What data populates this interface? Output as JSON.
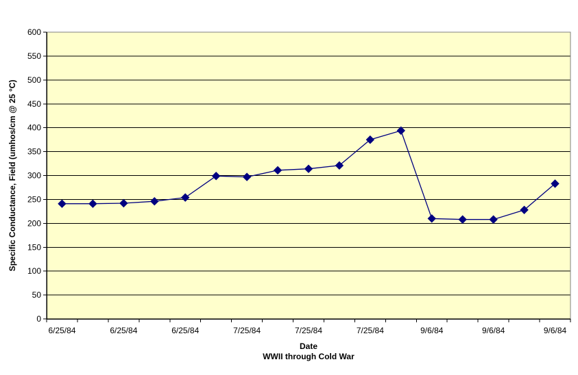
{
  "chart_data": {
    "type": "line",
    "title": "",
    "ylabel": "Specific Conductance, Field (umhos/cm @ 25 °C)",
    "xlabel": "Date",
    "xlabel_line2": "WWII through Cold War",
    "series": [
      {
        "values": [
          241,
          241,
          242,
          246,
          254,
          299,
          297,
          311,
          314,
          321,
          375,
          394,
          210,
          208,
          208,
          228,
          283
        ],
        "color": "#000080",
        "marker": "diamond"
      }
    ],
    "n_points": 17,
    "x_tick_labels": [
      "6/25/84",
      "6/25/84",
      "6/25/84",
      "7/25/84",
      "7/25/84",
      "7/25/84",
      "9/6/84",
      "9/6/84",
      "9/6/84"
    ],
    "x_label_every_n_points": 2,
    "ylim": [
      0,
      600
    ],
    "ytick_step": 50,
    "y_tick_labels": [
      "0",
      "50",
      "100",
      "150",
      "200",
      "250",
      "300",
      "350",
      "400",
      "450",
      "500",
      "550",
      "600"
    ],
    "grid": "horizontal",
    "legend": "none",
    "colors": {
      "plot_background": "#FFFFCC",
      "chart_background": "#FFFFFF",
      "gridline": "#000000",
      "plot_border": "#808080",
      "axis": "#000000",
      "series": "#000080",
      "text": "#000000"
    }
  }
}
